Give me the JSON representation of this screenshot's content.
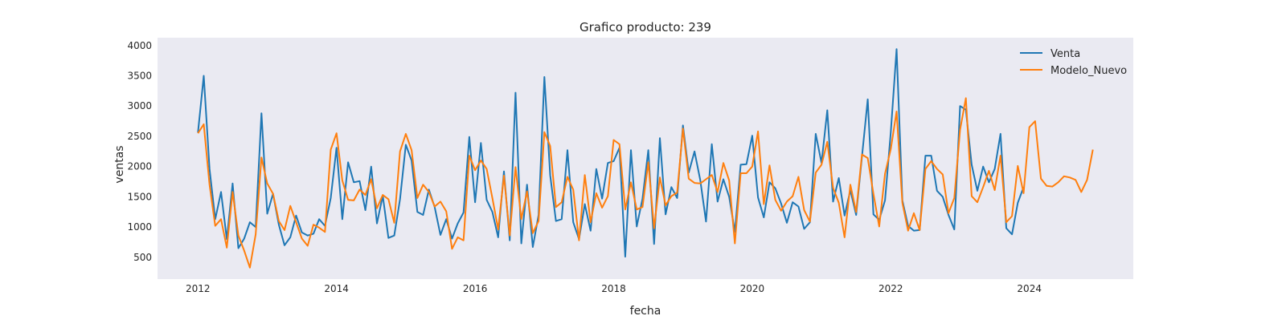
{
  "chart_data": {
    "type": "line",
    "title": "Grafico producto: 239",
    "xlabel": "fecha",
    "ylabel": "ventas",
    "xlim": [
      "2011-06",
      "2025-07"
    ],
    "ylim": [
      140,
      4130
    ],
    "x_ticks": [
      "2012",
      "2014",
      "2016",
      "2018",
      "2020",
      "2022",
      "2024"
    ],
    "y_ticks": [
      500,
      1000,
      1500,
      2000,
      2500,
      3000,
      3500,
      4000
    ],
    "grid": false,
    "legend": "top-right",
    "series": [
      {
        "name": "Venta",
        "color": "#1f77b4",
        "start": "2012-01",
        "values": [
          2560,
          3500,
          1960,
          1130,
          1580,
          800,
          1720,
          650,
          810,
          1080,
          1000,
          2880,
          1220,
          1550,
          1040,
          700,
          830,
          1190,
          910,
          860,
          890,
          1130,
          1020,
          1480,
          2310,
          1130,
          2070,
          1740,
          1760,
          1280,
          2000,
          1060,
          1520,
          820,
          860,
          1460,
          2360,
          2100,
          1250,
          1200,
          1620,
          1330,
          870,
          1130,
          810,
          1060,
          1240,
          2490,
          1410,
          2390,
          1450,
          1250,
          830,
          1920,
          780,
          3220,
          730,
          1700,
          670,
          1200,
          3480,
          1860,
          1100,
          1130,
          2270,
          1080,
          800,
          1380,
          940,
          1960,
          1470,
          2060,
          2090,
          2310,
          510,
          2270,
          1010,
          1470,
          2270,
          720,
          2470,
          1210,
          1660,
          1480,
          2680,
          1900,
          2250,
          1780,
          1090,
          2370,
          1420,
          1790,
          1500,
          920,
          2030,
          2040,
          2510,
          1490,
          1160,
          1740,
          1640,
          1390,
          1070,
          1410,
          1340,
          970,
          1080,
          2540,
          2060,
          2930,
          1420,
          1810,
          1190,
          1610,
          1200,
          2160,
          3110,
          1210,
          1120,
          1440,
          2570,
          3940,
          1440,
          1020,
          940,
          950,
          2180,
          2180,
          1600,
          1500,
          1200,
          960,
          3000,
          2940,
          2030,
          1600,
          2000,
          1740,
          1960,
          2540,
          980,
          880,
          1400,
          1660
        ]
      },
      {
        "name": "Modelo_Nuevo",
        "color": "#ff7f0e",
        "start": "2012-01",
        "values": [
          2550,
          2700,
          1700,
          1020,
          1130,
          660,
          1580,
          860,
          610,
          330,
          880,
          2150,
          1720,
          1550,
          1100,
          950,
          1350,
          1080,
          810,
          690,
          1040,
          990,
          920,
          2280,
          2550,
          1770,
          1450,
          1440,
          1620,
          1530,
          1790,
          1310,
          1530,
          1460,
          1070,
          2250,
          2540,
          2270,
          1480,
          1700,
          1580,
          1340,
          1420,
          1260,
          640,
          830,
          780,
          2180,
          1940,
          2100,
          1960,
          1480,
          960,
          1850,
          860,
          1990,
          1130,
          1590,
          900,
          1100,
          2570,
          2340,
          1330,
          1410,
          1830,
          1620,
          780,
          1860,
          1080,
          1560,
          1320,
          1510,
          2440,
          2370,
          1290,
          1740,
          1290,
          1330,
          2070,
          980,
          1820,
          1360,
          1510,
          1570,
          2630,
          1800,
          1730,
          1720,
          1790,
          1860,
          1580,
          2060,
          1770,
          730,
          1890,
          1890,
          2000,
          2580,
          1380,
          2020,
          1450,
          1270,
          1420,
          1510,
          1830,
          1280,
          1090,
          1900,
          2030,
          2410,
          1650,
          1400,
          830,
          1700,
          1250,
          2200,
          2140,
          1550,
          1010,
          1880,
          2290,
          2910,
          1400,
          940,
          1230,
          950,
          1960,
          2090,
          1960,
          1870,
          1230,
          1480,
          2610,
          3130,
          1510,
          1410,
          1660,
          1930,
          1610,
          2180,
          1080,
          1180,
          2010,
          1560,
          2650,
          2750,
          1800,
          1680,
          1670,
          1740,
          1840,
          1820,
          1780,
          1580,
          1780,
          2280
        ]
      }
    ]
  }
}
